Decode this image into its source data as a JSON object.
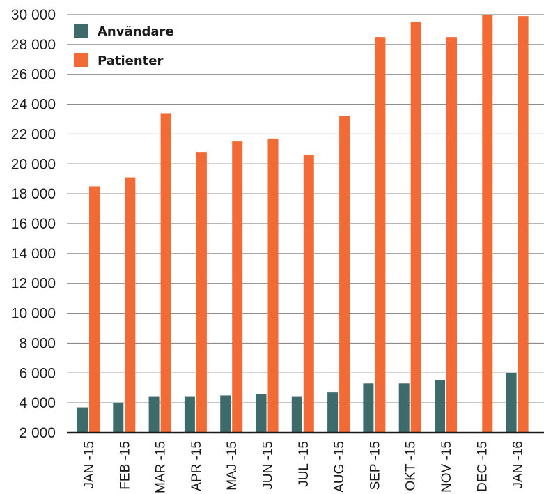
{
  "chart_data": {
    "type": "bar",
    "categories": [
      "JAN -15",
      "FEB -15",
      "MAR -15",
      "APR -15",
      "MAJ -15",
      "JUN -15",
      "JUL -15",
      "AUG -15",
      "SEP -15",
      "OKT -15",
      "NOV -15",
      "DEC -15",
      "JAN -16"
    ],
    "series": [
      {
        "name": "Användare",
        "color": "#3d6b6b",
        "values": [
          3700,
          4000,
          4400,
          4400,
          4500,
          4600,
          4400,
          4700,
          5300,
          5300,
          5500,
          null,
          6000
        ]
      },
      {
        "name": "Patienter",
        "color": "#f26a36",
        "values": [
          18500,
          19100,
          23400,
          20800,
          21500,
          21700,
          20600,
          23200,
          28500,
          29500,
          28500,
          30000,
          29900
        ]
      }
    ],
    "ylim": [
      2000,
      30000
    ],
    "yticks": [
      2000,
      4000,
      6000,
      8000,
      10000,
      12000,
      14000,
      16000,
      18000,
      20000,
      22000,
      24000,
      26000,
      28000,
      30000
    ],
    "ytick_labels": [
      "2 000",
      "4 000",
      "6 000",
      "8 000",
      "10 000",
      "12 000",
      "14 000",
      "16 000",
      "18 000",
      "20 000",
      "22 000",
      "24 000",
      "26 000",
      "28 000",
      "30 000"
    ],
    "grid": true,
    "legend_position": "top-left",
    "title": "",
    "xlabel": "",
    "ylabel": ""
  }
}
